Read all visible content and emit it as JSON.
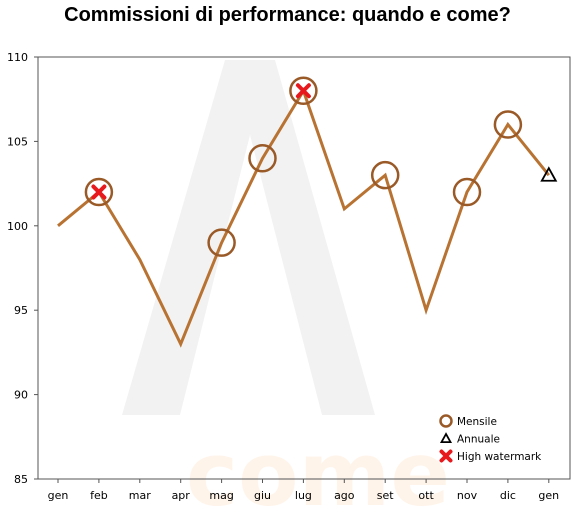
{
  "chart_data": {
    "type": "line",
    "title": "Commissioni di performance: quando e come?",
    "xlabel": "",
    "ylabel": "",
    "categories": [
      "gen",
      "feb",
      "mar",
      "apr",
      "mag",
      "giu",
      "lug",
      "ago",
      "set",
      "ott",
      "nov",
      "dic",
      "gen"
    ],
    "ylim": [
      85,
      110
    ],
    "yticks": [
      85,
      90,
      95,
      100,
      105,
      110
    ],
    "grid": false,
    "legend_position": "bottom-right",
    "series": [
      {
        "name": "",
        "kind": "line",
        "color": "#b87333",
        "values": [
          100,
          102,
          98,
          93,
          99,
          104,
          108,
          101,
          103,
          95,
          102,
          106,
          103
        ]
      }
    ],
    "markers": [
      {
        "name": "Mensile",
        "symbol": "circle-open",
        "color": "#9a5a28",
        "points": [
          {
            "x": "feb",
            "y": 102
          },
          {
            "x": "mag",
            "y": 99
          },
          {
            "x": "giu",
            "y": 104
          },
          {
            "x": "lug",
            "y": 108
          },
          {
            "x": "set",
            "y": 103
          },
          {
            "x": "nov",
            "y": 102
          },
          {
            "x": "dic",
            "y": 106
          }
        ]
      },
      {
        "name": "Annuale",
        "symbol": "triangle-open",
        "color": "#000000",
        "points": [
          {
            "x": "gen",
            "y": 103
          }
        ]
      },
      {
        "name": "High watermark",
        "symbol": "x",
        "color": "#e8191d",
        "points": [
          {
            "x": "feb",
            "y": 102
          },
          {
            "x": "lug",
            "y": 108
          }
        ]
      }
    ],
    "watermark_text": "come"
  }
}
